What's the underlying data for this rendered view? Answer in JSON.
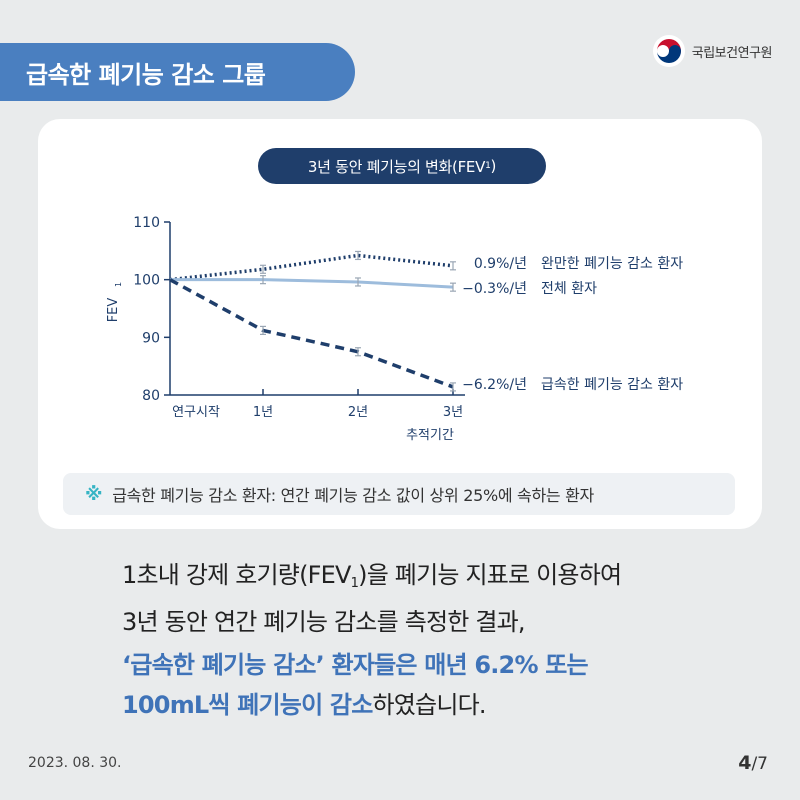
{
  "header": {
    "title": "급속한 폐기능 감소 그룹"
  },
  "logo": {
    "name": "국립보건연구원"
  },
  "chart_title": {
    "main": "3년 동안 폐기능의 변화(FEV",
    "sub": "1",
    "close": ")"
  },
  "chart_data": {
    "type": "line",
    "categories": [
      "연구시작",
      "1년",
      "2년",
      "3년"
    ],
    "xlabel": "추적기간",
    "ylabel": "FEV",
    "ylabel_sub": "1",
    "ylim": [
      80,
      110
    ],
    "yticks": [
      "110",
      "100",
      "90",
      "80"
    ],
    "series": [
      {
        "name": "완만한 폐기능 감소 환자",
        "rate": "0.9%/년",
        "style": "dotted",
        "color": "#1f3e6b",
        "values": [
          100,
          101.8,
          104.2,
          102.4
        ]
      },
      {
        "name": "전체 환자",
        "rate": "−0.3%/년",
        "style": "solid",
        "color": "#9dbcdc",
        "values": [
          100,
          100,
          99.6,
          98.7
        ]
      },
      {
        "name": "급속한 폐기능 감소 환자",
        "rate": "−6.2%/년",
        "style": "dashed",
        "color": "#1f3e6b",
        "values": [
          100,
          91.2,
          87.5,
          81.4
        ]
      }
    ]
  },
  "note": {
    "icon": "※",
    "text": "급속한 폐기능 감소 환자: 연간 폐기능 감소 값이 상위 25%에 속하는 환자"
  },
  "body": {
    "line1_a": "1초내 강제 호기량(FEV",
    "line1_sub": "1",
    "line1_b": ")을 폐기능 지표로 이용하여",
    "line2": "3년 동안 연간 폐기능 감소를 측정한 결과,"
  },
  "highlight": {
    "line1": "‘급속한 폐기능 감소’ 환자들은 매년 6.2% 또는",
    "line2_hl": "100mL씩 폐기능이 감소",
    "line2_plain": "하였습니다."
  },
  "footer": {
    "date": "2023. 08. 30.",
    "page_current": "4",
    "page_total": "/7"
  }
}
